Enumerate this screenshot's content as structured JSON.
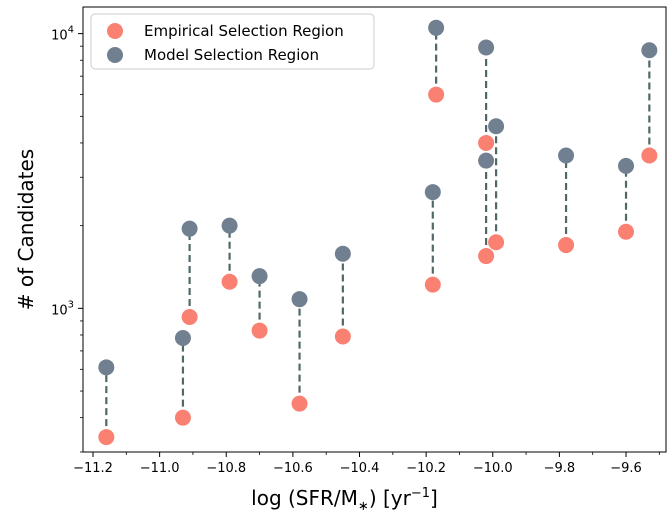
{
  "chart_data": {
    "type": "scatter",
    "title": "",
    "xlabel_main": "log (SFR/M",
    "xlabel_sub": "∗",
    "xlabel_tail": ") [yr",
    "xlabel_sup": "−1",
    "xlabel_end": "]",
    "ylabel": "# of Candidates",
    "xlim": [
      -11.23,
      -9.48
    ],
    "ylim": [
      300,
      12500
    ],
    "yscale": "log",
    "x_ticks": [
      -11.2,
      -11.0,
      -10.8,
      -10.6,
      -10.4,
      -10.2,
      -10.0,
      -9.8,
      -9.6
    ],
    "x_tick_labels": [
      "−11.2",
      "−11.0",
      "−10.8",
      "−10.6",
      "−10.4",
      "−10.2",
      "−10.0",
      "−9.8",
      "−9.6"
    ],
    "y_ticks": [
      {
        "value": 1000,
        "base": "10",
        "exp": "3"
      },
      {
        "value": 10000,
        "base": "10",
        "exp": "4"
      }
    ],
    "legend_position": "top-left",
    "grid": false,
    "x": [
      -11.16,
      -10.93,
      -10.91,
      -10.79,
      -10.7,
      -10.58,
      -10.45,
      -10.18,
      -10.17,
      -10.02,
      -10.02,
      -9.99,
      -9.78,
      -9.6,
      -9.53
    ],
    "series": [
      {
        "name": "Empirical Selection Region",
        "color": "#fa8072",
        "values": [
          340,
          400,
          930,
          1250,
          830,
          450,
          790,
          1220,
          6000,
          4000,
          1550,
          1740,
          1700,
          1900,
          3600
        ]
      },
      {
        "name": "Model Selection Region",
        "color": "#708090",
        "values": [
          610,
          780,
          1950,
          2000,
          1310,
          1080,
          1580,
          2650,
          10500,
          8900,
          3450,
          4600,
          3600,
          3300,
          8700
        ]
      }
    ],
    "connector_color": "#506868"
  }
}
